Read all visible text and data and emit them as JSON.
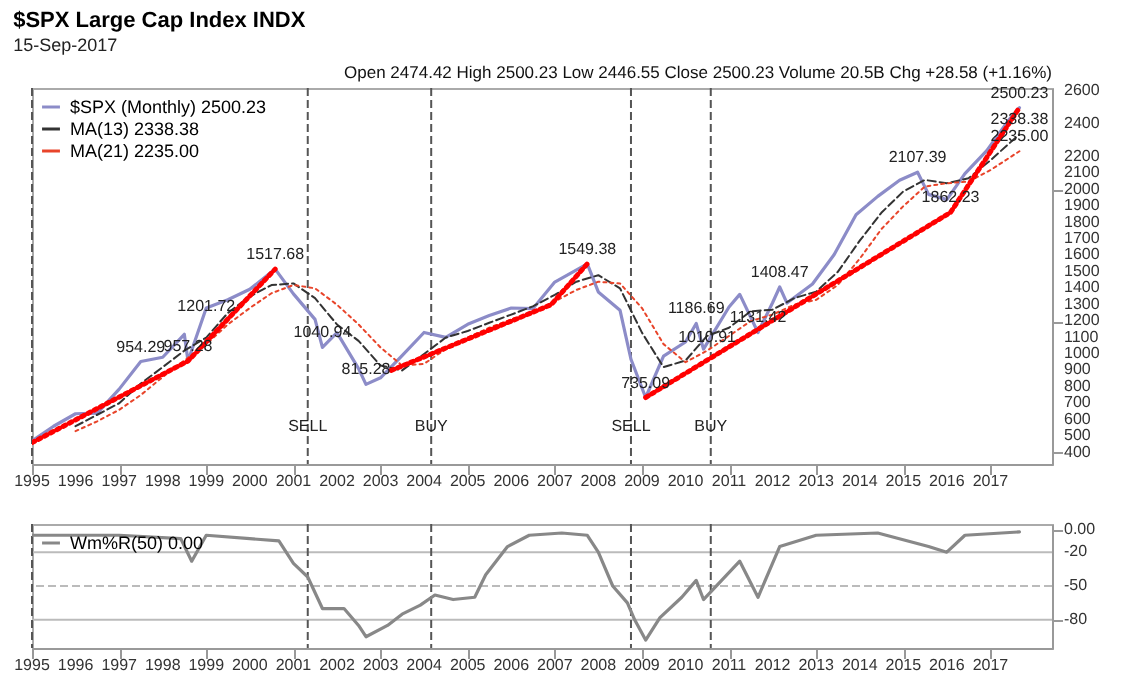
{
  "chart_data": [
    {
      "type": "line",
      "title": "$SPX Large Cap Index INDX",
      "subtitle": "15-Sep-2017",
      "legend": "top left",
      "grid": false,
      "xlim": [
        "1995-01",
        "2018-06"
      ],
      "xticks": [
        "1995",
        "1996",
        "1997",
        "1998",
        "1999",
        "2000",
        "2001",
        "2002",
        "2003",
        "2004",
        "2005",
        "2006",
        "2007",
        "2008",
        "2009",
        "2010",
        "2011",
        "2012",
        "2013",
        "2014",
        "2015",
        "2016",
        "2017"
      ],
      "ylim": [
        330,
        2620
      ],
      "yticks": [
        400,
        500,
        600,
        700,
        800,
        900,
        1000,
        1100,
        1200,
        1300,
        1400,
        1500,
        1600,
        1700,
        1800,
        1900,
        2000,
        2100,
        2200,
        2400,
        2600
      ],
      "series": [
        {
          "name": "$SPX (Monthly) 2500.23",
          "color": "#8c8cc8",
          "line_style": "solid",
          "x": [
            "1995-01",
            "1995-07",
            "1996-01",
            "1996-07",
            "1997-01",
            "1997-07",
            "1998-01",
            "1998-07",
            "1998-08",
            "1999-01",
            "1999-07",
            "2000-01",
            "2000-08",
            "2001-01",
            "2001-07",
            "2001-09",
            "2002-01",
            "2002-07",
            "2002-09",
            "2003-01",
            "2003-07",
            "2004-01",
            "2004-07",
            "2005-01",
            "2005-07",
            "2006-01",
            "2006-07",
            "2007-01",
            "2007-10",
            "2008-01",
            "2008-07",
            "2008-10",
            "2009-02",
            "2009-07",
            "2010-01",
            "2010-04",
            "2010-06",
            "2011-01",
            "2011-04",
            "2011-09",
            "2012-01",
            "2012-03",
            "2012-05",
            "2012-12",
            "2013-06",
            "2013-12",
            "2014-06",
            "2014-12",
            "2015-05",
            "2015-08",
            "2016-01",
            "2016-06",
            "2016-12",
            "2017-06",
            "2017-09"
          ],
          "values": [
            470,
            560,
            636,
            640,
            786,
            954,
            980,
            1120,
            957,
            1280,
            1330,
            1394,
            1517,
            1366,
            1211,
            1040,
            1130,
            911,
            815,
            855,
            990,
            1131,
            1101,
            1181,
            1234,
            1280,
            1276,
            1438,
            1549,
            1378,
            1267,
            968,
            735,
            987,
            1073,
            1186,
            1030,
            1286,
            1363,
            1131,
            1312,
            1408,
            1310,
            1426,
            1606,
            1848,
            1960,
            2058,
            2107,
            1972,
            1940,
            2098,
            2238,
            2423,
            2500
          ]
        },
        {
          "name": "MA(13) 2338.38",
          "color": "#333333",
          "line_style": "dashed",
          "x": [
            "1996-01",
            "1996-07",
            "1997-01",
            "1997-07",
            "1998-01",
            "1998-07",
            "1999-01",
            "1999-07",
            "2000-01",
            "2000-07",
            "2001-01",
            "2001-07",
            "2002-01",
            "2002-07",
            "2003-01",
            "2003-07",
            "2004-01",
            "2004-07",
            "2005-01",
            "2005-07",
            "2006-01",
            "2006-07",
            "2007-01",
            "2007-07",
            "2008-01",
            "2008-07",
            "2009-01",
            "2009-07",
            "2010-01",
            "2010-07",
            "2011-01",
            "2011-07",
            "2012-01",
            "2012-07",
            "2013-01",
            "2013-07",
            "2014-01",
            "2014-07",
            "2015-01",
            "2015-07",
            "2016-01",
            "2016-07",
            "2017-01",
            "2017-09"
          ],
          "values": [
            560,
            630,
            700,
            820,
            920,
            1020,
            1100,
            1250,
            1350,
            1420,
            1430,
            1340,
            1180,
            1080,
            930,
            900,
            1000,
            1100,
            1140,
            1190,
            1240,
            1290,
            1360,
            1440,
            1480,
            1400,
            1130,
            920,
            960,
            1110,
            1160,
            1260,
            1270,
            1340,
            1380,
            1500,
            1690,
            1860,
            1990,
            2060,
            2040,
            2070,
            2180,
            2338
          ]
        },
        {
          "name": "MA(21) 2235.00",
          "color": "#e8442a",
          "line_style": "dotted",
          "x": [
            "1996-01",
            "1996-07",
            "1997-01",
            "1997-07",
            "1998-01",
            "1998-07",
            "1999-01",
            "1999-07",
            "2000-01",
            "2000-07",
            "2001-01",
            "2001-07",
            "2002-01",
            "2002-07",
            "2003-01",
            "2003-07",
            "2004-01",
            "2004-07",
            "2005-01",
            "2005-07",
            "2006-01",
            "2006-07",
            "2007-01",
            "2007-07",
            "2008-01",
            "2008-07",
            "2009-01",
            "2009-07",
            "2010-01",
            "2010-07",
            "2011-01",
            "2011-07",
            "2012-01",
            "2012-07",
            "2013-01",
            "2013-07",
            "2014-01",
            "2014-07",
            "2015-01",
            "2015-07",
            "2016-01",
            "2016-07",
            "2017-01",
            "2017-09"
          ],
          "values": [
            530,
            590,
            660,
            750,
            860,
            960,
            1060,
            1180,
            1280,
            1370,
            1420,
            1400,
            1300,
            1180,
            1040,
            930,
            940,
            1030,
            1100,
            1160,
            1210,
            1250,
            1320,
            1390,
            1440,
            1430,
            1280,
            1060,
            950,
            1020,
            1110,
            1200,
            1240,
            1300,
            1330,
            1420,
            1580,
            1760,
            1900,
            2020,
            2040,
            2050,
            2120,
            2235
          ]
        },
        {
          "color": "#ff0000",
          "line_style": "dotted",
          "x": [
            "1995-01",
            "1998-08",
            "2000-08"
          ],
          "values": [
            460,
            957,
            1517
          ]
        },
        {
          "color": "#ff0000",
          "line_style": "dotted",
          "x": [
            "2003-04",
            "2006-12",
            "2007-10"
          ],
          "values": [
            900,
            1300,
            1549
          ]
        },
        {
          "color": "#ff0000",
          "line_style": "dotted",
          "x": [
            "2009-02",
            "2016-02",
            "2017-09"
          ],
          "values": [
            735,
            1862,
            2500
          ]
        }
      ],
      "ref_lines": [
        {
          "axis": "x",
          "value": "1995-01",
          "line_style": "dashed",
          "color": "#555555"
        },
        {
          "axis": "x",
          "value": "2001-05",
          "line_style": "dashed",
          "color": "#555555"
        },
        {
          "axis": "x",
          "value": "2004-03",
          "line_style": "dashed",
          "color": "#555555"
        },
        {
          "axis": "x",
          "value": "2008-10",
          "line_style": "dashed",
          "color": "#555555"
        },
        {
          "axis": "x",
          "value": "2010-08",
          "line_style": "dashed",
          "color": "#555555"
        }
      ],
      "annotations": [
        "Open 2474.42 High 2500.23 Low 2446.55 Close 2500.23 Volume 20.5B Chg +28.58 (+1.16%)",
        {
          "text": "954.29",
          "x": "1997-07",
          "y": 954
        },
        {
          "text": "957.28",
          "x": "1998-08",
          "y": 957
        },
        {
          "text": "1201.72",
          "x": "1999-01",
          "y": 1200
        },
        {
          "text": "1517.68",
          "x": "2000-08",
          "y": 1517
        },
        {
          "text": "1040.94",
          "x": "2001-09",
          "y": 1040
        },
        {
          "text": "815.28",
          "x": "2002-09",
          "y": 815
        },
        {
          "text": "1549.38",
          "x": "2007-10",
          "y": 1549
        },
        {
          "text": "735.09",
          "x": "2009-02",
          "y": 735
        },
        {
          "text": "1186.69",
          "x": "2010-04",
          "y": 1186
        },
        {
          "text": "1010.91",
          "x": "2010-07",
          "y": 1010
        },
        {
          "text": "1131.42",
          "x": "2011-09",
          "y": 1131
        },
        {
          "text": "1408.47",
          "x": "2012-03",
          "y": 1408
        },
        {
          "text": "2107.39",
          "x": "2015-05",
          "y": 2107
        },
        {
          "text": "1862.23",
          "x": "2016-02",
          "y": 1862
        },
        {
          "text": "2500.23",
          "x": "2017-09",
          "y": 2500
        },
        {
          "text": "2338.38",
          "x": "2017-09",
          "y": 2338
        },
        {
          "text": "2235.00",
          "x": "2017-09",
          "y": 2235
        },
        {
          "text": "SELL",
          "x": "2001-05",
          "y": 470
        },
        {
          "text": "BUY",
          "x": "2004-03",
          "y": 470
        },
        {
          "text": "SELL",
          "x": "2008-10",
          "y": 470
        },
        {
          "text": "BUY",
          "x": "2010-08",
          "y": 470
        }
      ]
    },
    {
      "type": "line",
      "legend": "top left",
      "grid": false,
      "xlim": [
        "1995-01",
        "2018-06"
      ],
      "xticks": [
        "1995",
        "1996",
        "1997",
        "1998",
        "1999",
        "2000",
        "2001",
        "2002",
        "2003",
        "2004",
        "2005",
        "2006",
        "2007",
        "2008",
        "2009",
        "2010",
        "2011",
        "2012",
        "2013",
        "2014",
        "2015",
        "2016",
        "2017"
      ],
      "ylim": [
        -105,
        5
      ],
      "yticks": [
        {
          "value": 0,
          "label": "0.00"
        },
        -20,
        -50,
        -80
      ],
      "series": [
        {
          "name": "Wm%R(50) 0.00",
          "color": "#888888",
          "line_style": "solid",
          "x": [
            "1995-01",
            "1996-01",
            "1997-01",
            "1998-06",
            "1998-09",
            "1999-01",
            "2000-01",
            "2000-09",
            "2001-01",
            "2001-05",
            "2001-09",
            "2002-03",
            "2002-07",
            "2002-09",
            "2003-03",
            "2003-07",
            "2003-12",
            "2004-04",
            "2004-09",
            "2005-03",
            "2005-06",
            "2005-12",
            "2006-06",
            "2007-03",
            "2007-10",
            "2008-01",
            "2008-05",
            "2008-09",
            "2008-11",
            "2009-02",
            "2009-06",
            "2009-12",
            "2010-04",
            "2010-06",
            "2011-04",
            "2011-09",
            "2012-03",
            "2013-01",
            "2014-06",
            "2015-08",
            "2016-01",
            "2016-06",
            "2017-09"
          ],
          "values": [
            -5,
            -5,
            -5,
            -8,
            -28,
            -5,
            -8,
            -10,
            -30,
            -42,
            -70,
            -70,
            -85,
            -95,
            -85,
            -75,
            -67,
            -58,
            -62,
            -60,
            -40,
            -15,
            -5,
            -3,
            -5,
            -20,
            -50,
            -65,
            -80,
            -98,
            -78,
            -60,
            -45,
            -62,
            -28,
            -60,
            -15,
            -5,
            -3,
            -15,
            -20,
            -5,
            -2
          ]
        }
      ],
      "ref_lines": [
        {
          "axis": "y",
          "value": -20,
          "line_style": "solid",
          "color": "#bbbbbb"
        },
        {
          "axis": "y",
          "value": -50,
          "line_style": "dashed",
          "color": "#bbbbbb"
        },
        {
          "axis": "y",
          "value": -80,
          "line_style": "solid",
          "color": "#bbbbbb"
        },
        {
          "axis": "x",
          "value": "1995-01",
          "line_style": "dashed",
          "color": "#555555"
        },
        {
          "axis": "x",
          "value": "2001-05",
          "line_style": "dashed",
          "color": "#555555"
        },
        {
          "axis": "x",
          "value": "2004-03",
          "line_style": "dashed",
          "color": "#555555"
        },
        {
          "axis": "x",
          "value": "2008-10",
          "line_style": "dashed",
          "color": "#555555"
        },
        {
          "axis": "x",
          "value": "2010-08",
          "line_style": "dashed",
          "color": "#555555"
        }
      ]
    }
  ]
}
